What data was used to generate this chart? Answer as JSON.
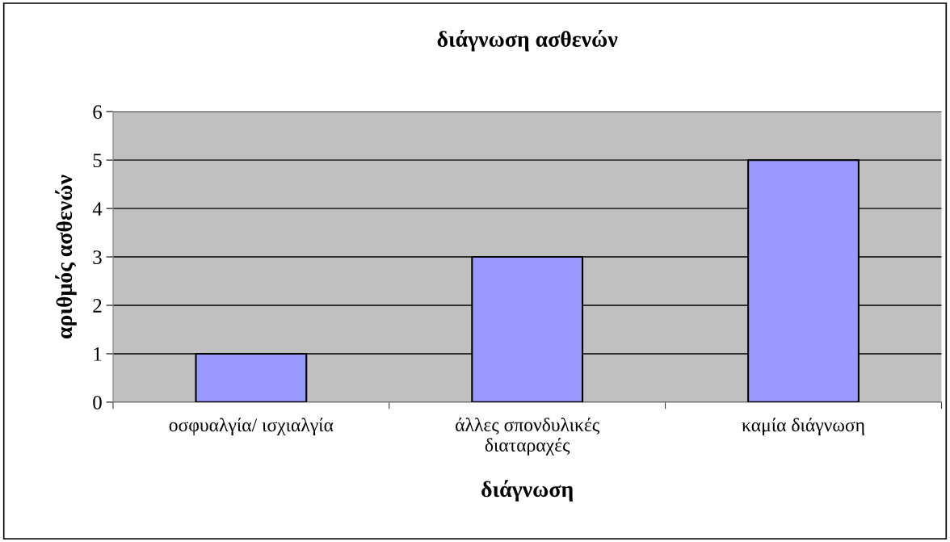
{
  "chart_data": {
    "type": "bar",
    "title": "διάγνωση ασθενών",
    "xlabel": "διάγνωση",
    "ylabel": "αριθμός ασθενών",
    "categories": [
      "οσφυαλγία/ ισχιαλγία",
      "άλλες σπονδυλικές\nδιαταραχές",
      "καμία διάγνωση"
    ],
    "values": [
      1,
      3,
      5
    ],
    "color": "#9999ff",
    "ylim": [
      0,
      6
    ],
    "yticks": [
      0,
      1,
      2,
      3,
      4,
      5,
      6
    ],
    "grid": "y",
    "legend": false
  }
}
